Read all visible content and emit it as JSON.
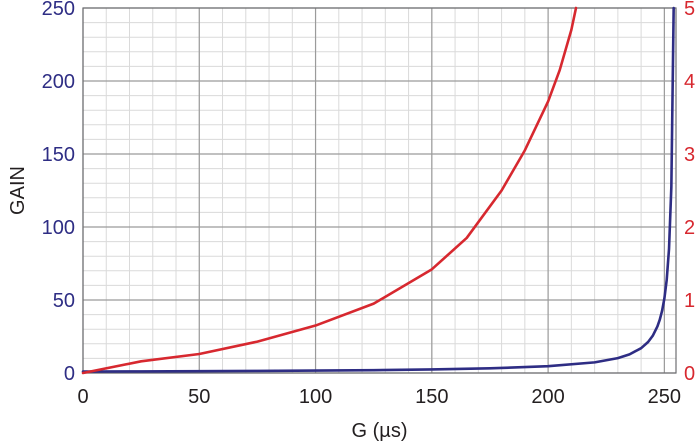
{
  "chart_data": {
    "type": "line",
    "xlabel": "G (µs)",
    "ylabel": "GAIN",
    "xlim": [
      0,
      255
    ],
    "ylim_left": [
      0,
      250
    ],
    "ylim_right": [
      0,
      5
    ],
    "x_ticks": [
      0,
      50,
      100,
      150,
      200,
      250
    ],
    "y_ticks_left": [
      0,
      50,
      100,
      150,
      200,
      250
    ],
    "y_ticks_right": [
      0,
      1,
      2,
      3,
      4,
      5
    ],
    "grid": true,
    "legend": "none",
    "series": [
      {
        "axis": "left",
        "color": "#2e2d84",
        "x": [
          0,
          25,
          50,
          75,
          100,
          125,
          150,
          175,
          200,
          220,
          230,
          235,
          240,
          243,
          245,
          247,
          248,
          249,
          250,
          251,
          252,
          253,
          254
        ],
        "y": [
          1.0,
          1.1,
          1.24,
          1.41,
          1.64,
          1.96,
          2.43,
          3.19,
          4.64,
          7.29,
          10.2,
          12.75,
          17.0,
          21.25,
          25.5,
          31.9,
          36.4,
          42.5,
          51.0,
          63.75,
          85.0,
          127.5,
          250
        ]
      },
      {
        "axis": "right",
        "color": "#d7282f",
        "x": [
          0,
          25,
          50,
          75,
          100,
          125,
          150,
          165,
          180,
          190,
          200,
          205,
          210,
          212
        ],
        "y": [
          0,
          0.16,
          0.26,
          0.43,
          0.65,
          0.95,
          1.42,
          1.85,
          2.5,
          3.05,
          3.72,
          4.15,
          4.7,
          5.0
        ]
      }
    ]
  },
  "colors": {
    "left_axis_text": "#2e2d84",
    "right_axis_text": "#d7282f",
    "major_grid": "#9b9b9b",
    "minor_grid": "#dadada",
    "frame": "#6d6e71"
  }
}
